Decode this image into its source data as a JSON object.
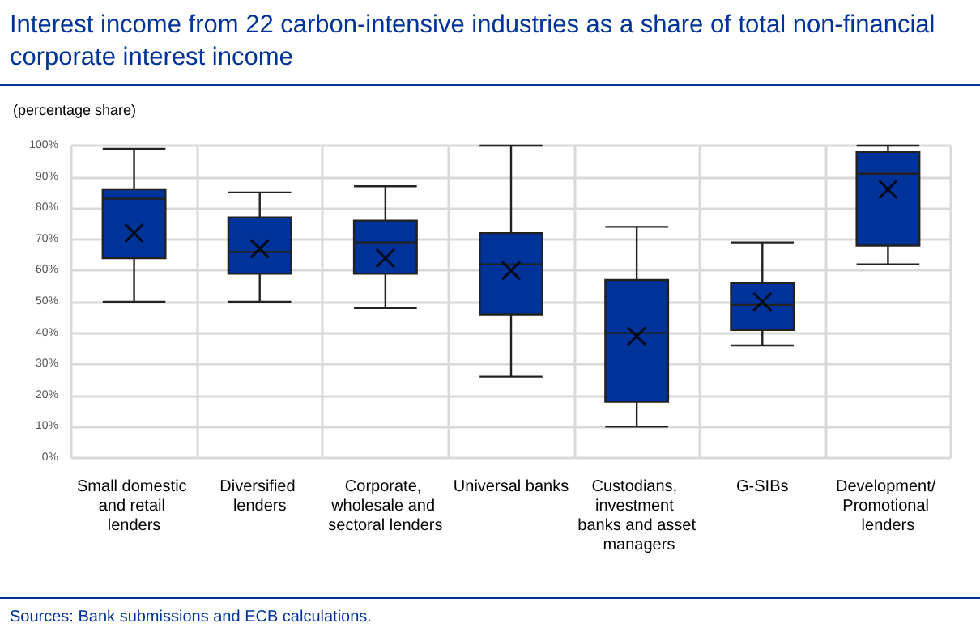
{
  "chart_data": {
    "type": "box",
    "title": "Interest income from 22 carbon-intensive industries as a share of total non-financial corporate interest income",
    "subtitle": "(percentage share)",
    "annotations": [
      "Sources: Bank submissions and ECB calculations."
    ],
    "categories": [
      "Small domestic and retail lenders",
      "Diversified lenders",
      "Corporate, wholesale and sectoral lenders",
      "Universal banks",
      "Custodians, investment banks and asset managers",
      "G-SIBs",
      "Development/ Promotional lenders"
    ],
    "color": "#003399",
    "boxes": [
      {
        "low": 50,
        "q1": 64,
        "median": 83,
        "q3": 86,
        "high": 99,
        "mean": 72
      },
      {
        "low": 50,
        "q1": 59,
        "median": 66,
        "q3": 77,
        "high": 85,
        "mean": 67
      },
      {
        "low": 48,
        "q1": 59,
        "median": 69,
        "q3": 76,
        "high": 87,
        "mean": 64
      },
      {
        "low": 26,
        "q1": 46,
        "median": 62,
        "q3": 72,
        "high": 100,
        "mean": 60
      },
      {
        "low": 10,
        "q1": 18,
        "median": 40,
        "q3": 57,
        "high": 74,
        "mean": 39
      },
      {
        "low": 36,
        "q1": 41,
        "median": 49,
        "q3": 56,
        "high": 69,
        "mean": 50
      },
      {
        "low": 62,
        "q1": 68,
        "median": 91,
        "q3": 98,
        "high": 100,
        "mean": 86
      }
    ],
    "ylim": [
      0,
      100
    ],
    "yticks": [
      {
        "value": 0,
        "label": "0%"
      },
      {
        "value": 10,
        "label": "10%"
      },
      {
        "value": 20,
        "label": "20%"
      },
      {
        "value": 30,
        "label": "30%"
      },
      {
        "value": 40,
        "label": "40%"
      },
      {
        "value": 50,
        "label": "50%"
      },
      {
        "value": 60,
        "label": "60%"
      },
      {
        "value": 70,
        "label": "70%"
      },
      {
        "value": 80,
        "label": "80%"
      },
      {
        "value": 90,
        "label": "90%"
      },
      {
        "value": 100,
        "label": "100%"
      }
    ],
    "grid": true
  }
}
